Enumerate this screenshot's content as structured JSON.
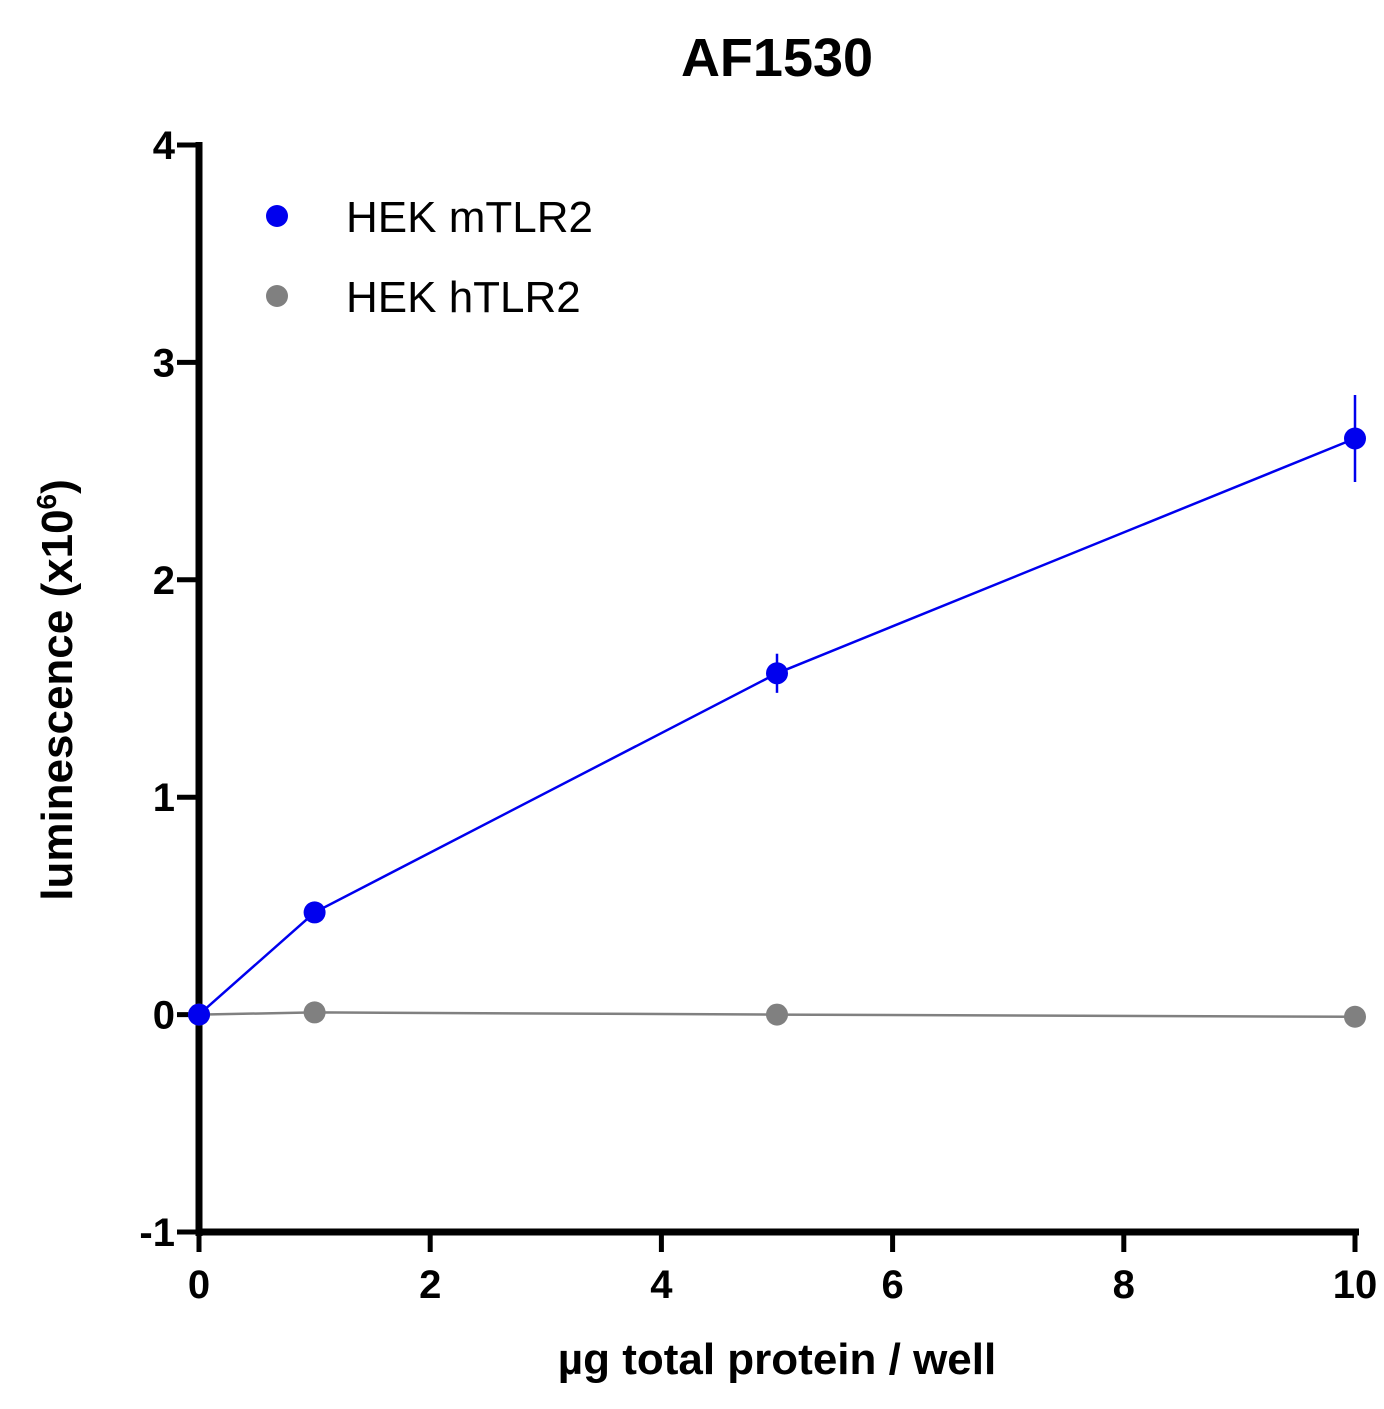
{
  "chart_data": {
    "type": "line",
    "title": "AF1530",
    "xlabel": "µg total protein / well",
    "ylabel": "luminescence (x10",
    "ylabel_sup": "6",
    "ylabel_close": ")",
    "xlim": [
      0,
      10
    ],
    "ylim": [
      -1,
      4
    ],
    "xticks": [
      0,
      2,
      4,
      6,
      8,
      10
    ],
    "xtick_labels": [
      "0",
      "2",
      "4",
      "6",
      "8",
      "10"
    ],
    "yticks": [
      -1,
      0,
      1,
      2,
      3,
      4
    ],
    "ytick_labels": [
      "-1",
      "0",
      "1",
      "2",
      "3",
      "4"
    ],
    "grid": false,
    "legend_position": "top-left",
    "series": [
      {
        "name": "HEK mTLR2",
        "color": "#0000ee",
        "x": [
          0,
          1,
          5,
          10
        ],
        "y": [
          0.0,
          0.47,
          1.57,
          2.65
        ],
        "error": [
          0,
          0,
          0.09,
          0.2
        ]
      },
      {
        "name": "HEK hTLR2",
        "color": "#808080",
        "x": [
          0,
          1,
          5,
          10
        ],
        "y": [
          0.0,
          0.01,
          0.0,
          -0.01
        ],
        "error": [
          0,
          0,
          0,
          0
        ]
      }
    ]
  }
}
